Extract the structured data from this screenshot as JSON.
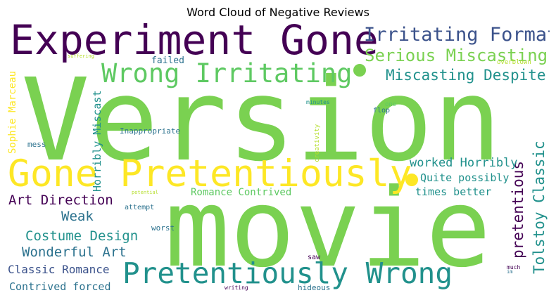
{
  "title": "Word Cloud of Negative Reviews",
  "colors": {
    "green": "#7ad151",
    "yellow": "#fde725",
    "dark_purple": "#440154",
    "indigo": "#3b528b",
    "teal": "#21918c",
    "mint": "#5ec962",
    "blue": "#2c728e"
  },
  "words": {
    "version": "Version",
    "movie": "movie",
    "experiment_gone": "Experiment Gone",
    "gone_pretentiously": "Gone Pretentiously",
    "pretentiously_wrong": "Pretentiously Wrong",
    "wrong_irritating": "Wrong Irritating",
    "irritating_format": "Irritating Format",
    "serious_miscasting": "Serious Miscasting",
    "miscasting_despite": "Miscasting Despite",
    "tolstoy_classic": "Tolstoy Classic",
    "pretentious": "pretentious",
    "worked_horribly": "worked Horribly",
    "quite_possibly": "Quite possibly",
    "times_better": "times better",
    "art_direction": "Art Direction",
    "weak": "Weak",
    "costume_design": "Costume Design",
    "wonderful_art": "Wonderful Art",
    "classic_romance": "Classic Romance",
    "contrived_forced": "Contrived forced",
    "romance_contrived": "Romance Contrived",
    "horribly_miscast": "Horribly Miscast",
    "sophie_marceau": "Sophie Marceau",
    "inappropriate": "Inappropriate",
    "failed": "failed",
    "mess": "mess",
    "creativity": "creativity",
    "minutes": "minutes",
    "flop": "flop",
    "one": "one",
    "overblown": "overblown",
    "suffering": "suffering",
    "potential": "potential",
    "attempt": "attempt",
    "worst": "worst",
    "saw": "saw",
    "hideous": "hideous",
    "writing": "writing",
    "much": "much",
    "im": "im"
  }
}
